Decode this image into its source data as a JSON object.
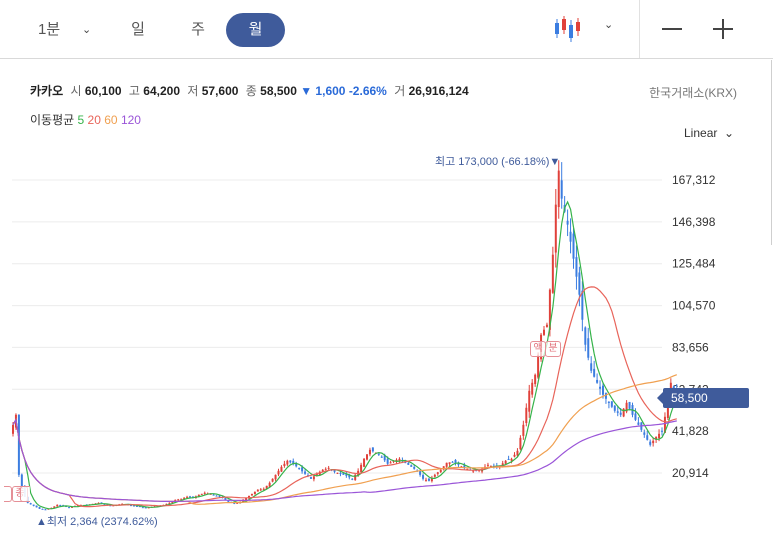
{
  "toolbar": {
    "timeframes": [
      "1분",
      "일",
      "주",
      "월"
    ],
    "active": "월"
  },
  "stock": {
    "name": "카카오",
    "open_label": "시",
    "open": "60,100",
    "high_label": "고",
    "high": "64,200",
    "low_label": "저",
    "low": "57,600",
    "close_label": "종",
    "close": "58,500",
    "change": "▼ 1,600",
    "change_pct": "-2.66%",
    "volume_label": "거",
    "volume": "26,916,124",
    "exchange": "한국거래소(KRX)"
  },
  "ma": {
    "label": "이동평균",
    "p5": "5",
    "p20": "20",
    "p60": "60",
    "p120": "120"
  },
  "colors": {
    "up": "#e0413a",
    "down": "#3b7de0",
    "ma5": "#36b34a",
    "ma20": "#e8645a",
    "ma60": "#f0a050",
    "ma120": "#9a55d8",
    "accent": "#3f5b9b"
  },
  "scale": "Linear",
  "chart_data": {
    "type": "candlestick",
    "yticks": [
      "167,312",
      "146,398",
      "125,484",
      "104,570",
      "83,656",
      "62,742",
      "41,828",
      "20,914"
    ],
    "ytick_values": [
      167312,
      146398,
      125484,
      104570,
      83656,
      62742,
      41828,
      20914
    ],
    "last_price": "58,500",
    "high_note": "최고 173,000 (-66.18%)▼",
    "low_note": "▲최저 2,364 (2374.62%)",
    "marks": [
      "액",
      "분",
      "종"
    ],
    "close_path": [
      [
        0,
        45000
      ],
      [
        1,
        50000
      ],
      [
        2,
        20000
      ],
      [
        3,
        14000
      ],
      [
        4,
        9000
      ],
      [
        5,
        6000
      ],
      [
        7,
        4500
      ],
      [
        9,
        3000
      ],
      [
        11,
        2700
      ],
      [
        13,
        3500
      ],
      [
        15,
        5000
      ],
      [
        17,
        4500
      ],
      [
        19,
        3500
      ],
      [
        21,
        4500
      ],
      [
        23,
        5000
      ],
      [
        25,
        4800
      ],
      [
        27,
        5500
      ],
      [
        29,
        6000
      ],
      [
        31,
        5000
      ],
      [
        33,
        4500
      ],
      [
        35,
        5000
      ],
      [
        37,
        5500
      ],
      [
        39,
        5000
      ],
      [
        41,
        4500
      ],
      [
        43,
        4000
      ],
      [
        45,
        3500
      ],
      [
        47,
        4000
      ],
      [
        49,
        4500
      ],
      [
        51,
        5000
      ],
      [
        53,
        6000
      ],
      [
        55,
        7500
      ],
      [
        57,
        8000
      ],
      [
        59,
        9000
      ],
      [
        61,
        8500
      ],
      [
        63,
        10000
      ],
      [
        65,
        11000
      ],
      [
        67,
        10500
      ],
      [
        69,
        9500
      ],
      [
        71,
        8500
      ],
      [
        73,
        6500
      ],
      [
        75,
        5500
      ],
      [
        77,
        6500
      ],
      [
        79,
        8500
      ],
      [
        81,
        10500
      ],
      [
        83,
        12500
      ],
      [
        85,
        13000
      ],
      [
        87,
        16000
      ],
      [
        89,
        20000
      ],
      [
        91,
        24000
      ],
      [
        93,
        27000
      ],
      [
        95,
        25500
      ],
      [
        97,
        23000
      ],
      [
        99,
        20500
      ],
      [
        101,
        18000
      ],
      [
        103,
        20500
      ],
      [
        105,
        22500
      ],
      [
        107,
        23500
      ],
      [
        109,
        21500
      ],
      [
        111,
        20500
      ],
      [
        113,
        19500
      ],
      [
        115,
        18000
      ],
      [
        117,
        22000
      ],
      [
        119,
        28000
      ],
      [
        121,
        32500
      ],
      [
        123,
        31000
      ],
      [
        125,
        29000
      ],
      [
        127,
        25500
      ],
      [
        129,
        27000
      ],
      [
        131,
        28000
      ],
      [
        133,
        26000
      ],
      [
        135,
        24000
      ],
      [
        137,
        22000
      ],
      [
        139,
        18000
      ],
      [
        141,
        17000
      ],
      [
        143,
        20000
      ],
      [
        145,
        22500
      ],
      [
        147,
        26000
      ],
      [
        149,
        26500
      ],
      [
        151,
        25000
      ],
      [
        153,
        23500
      ],
      [
        155,
        22500
      ],
      [
        157,
        22000
      ],
      [
        159,
        23000
      ],
      [
        161,
        25000
      ],
      [
        163,
        24000
      ],
      [
        165,
        24500
      ],
      [
        167,
        27000
      ],
      [
        169,
        28000
      ],
      [
        171,
        32000
      ],
      [
        173,
        45000
      ],
      [
        175,
        62000
      ],
      [
        177,
        70000
      ],
      [
        179,
        90000
      ],
      [
        181,
        95000
      ],
      [
        183,
        130000
      ],
      [
        184,
        155000
      ],
      [
        185,
        172000
      ],
      [
        186,
        158000
      ],
      [
        188,
        145000
      ],
      [
        190,
        128000
      ],
      [
        192,
        110000
      ],
      [
        194,
        85000
      ],
      [
        196,
        72000
      ],
      [
        198,
        66000
      ],
      [
        200,
        60000
      ],
      [
        202,
        56000
      ],
      [
        204,
        52000
      ],
      [
        206,
        50000
      ],
      [
        208,
        56000
      ],
      [
        210,
        50000
      ],
      [
        212,
        45000
      ],
      [
        214,
        40000
      ],
      [
        216,
        35000
      ],
      [
        218,
        39000
      ],
      [
        220,
        42000
      ],
      [
        222,
        56000
      ],
      [
        223,
        66000
      ],
      [
        224,
        62000
      ],
      [
        225,
        58500
      ]
    ]
  }
}
